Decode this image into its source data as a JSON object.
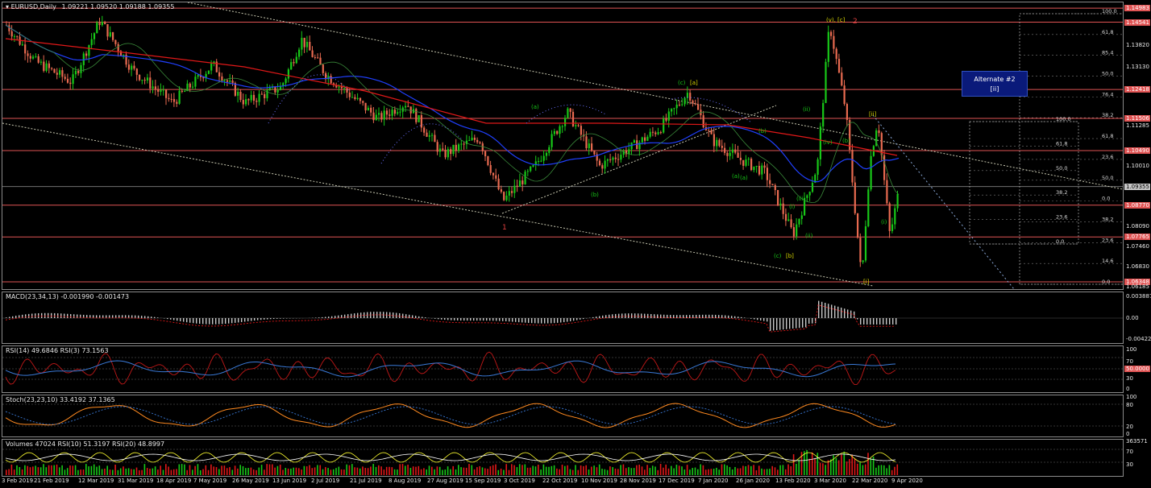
{
  "main": {
    "symbol_label": "EURUSD,Daily",
    "ohlc": "1.09221 1.09520 1.09188 1.09355",
    "price_axis": [
      "1.14983",
      "1.14541",
      "1.13820",
      "1.13130",
      "1.12418",
      "1.11506",
      "1.11285",
      "1.10490",
      "1.10010",
      "1.09355",
      "1.08770",
      "1.08090",
      "1.07765",
      "1.07460",
      "1.06830",
      "1.06348",
      "1.06185"
    ],
    "price_axis_values": [
      1.14983,
      1.14541,
      1.1382,
      1.1313,
      1.12418,
      1.11506,
      1.11285,
      1.1049,
      1.1001,
      1.09355,
      1.0877,
      1.0809,
      1.07765,
      1.0746,
      1.0683,
      1.06348,
      1.06185
    ],
    "tagged_levels": [
      "1.14983",
      "1.14541",
      "1.12418",
      "1.11506",
      "1.10490",
      "1.08770",
      "1.07765",
      "1.06348"
    ],
    "bid_price": "1.09355",
    "level_color": "#e05454",
    "fib_grid_a": [
      "100.0",
      "61.8",
      "85.4",
      "50.0",
      "76.4",
      "38.2",
      "61.8",
      "23.6",
      "50.0",
      "0.0",
      "38.2",
      "23.6",
      "14.6",
      "0.0"
    ],
    "fib_grid_b": [
      "100.0",
      "61.8",
      "85.4",
      "50.0",
      "76.4",
      "38.2",
      "61.8",
      "23.6",
      "50.0",
      "0.0",
      "38.2",
      "23.6",
      "14.6",
      "0.0"
    ],
    "fib_grid_c": [
      "100.0",
      "61.8",
      "50.0",
      "38.2",
      "23.6",
      "0.0"
    ],
    "wave_labels": [
      "(v), [c]",
      "2",
      "1",
      "(c)",
      "[a]",
      "(a)",
      "(b)",
      "(c)",
      "[b]",
      "(a)",
      "(b)",
      "(ii)",
      "(iii)",
      "(iv)",
      "(i)",
      "[i]",
      "[ii]",
      "(ii)",
      "(i)",
      "(b)",
      "(a)"
    ],
    "alternate_box": {
      "line1": "Alternate #2",
      "line2": "[ii]"
    }
  },
  "macd": {
    "title": "MACD(23,34,13) -0.001990 -0.001473",
    "axis": [
      "0.003887",
      "0.00",
      "-0.004223"
    ]
  },
  "rsi": {
    "title": "RSI(14) 49.6846  RSI(3) 73.1563",
    "axis": [
      "100",
      "70",
      "50.0000",
      "30",
      "0"
    ]
  },
  "stoch": {
    "title": "Stoch(23,23,10) 33.4192 37.1365",
    "axis": [
      "100",
      "80",
      "20",
      "0"
    ]
  },
  "volumes": {
    "title": "Volumes 47024  RSI(10) 51.3197  RSI(20) 48.8997",
    "axis": [
      "363571",
      "70",
      "30"
    ]
  },
  "time_axis": [
    "3 Feb 2019",
    "21 Feb 2019",
    "12 Mar 2019",
    "31 Mar 2019",
    "18 Apr 2019",
    "7 May 2019",
    "26 May 2019",
    "13 Jun 2019",
    "2 Jul 2019",
    "21 Jul 2019",
    "8 Aug 2019",
    "27 Aug 2019",
    "15 Sep 2019",
    "3 Oct 2019",
    "22 Oct 2019",
    "10 Nov 2019",
    "28 Nov 2019",
    "17 Dec 2019",
    "7 Jan 2020",
    "26 Jan 2020",
    "13 Feb 2020",
    "3 Mar 2020",
    "22 Mar 2020",
    "9 Apr 2020"
  ]
}
